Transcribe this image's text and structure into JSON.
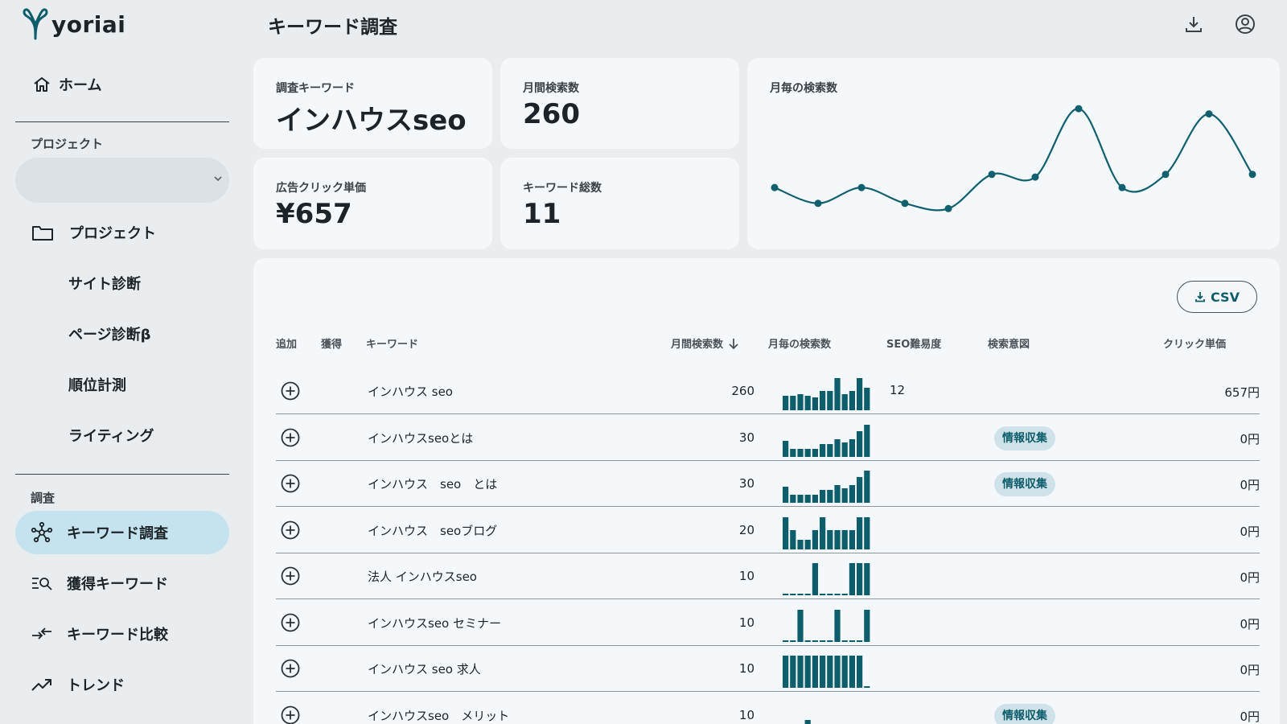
{
  "brand": {
    "name": "yoriai",
    "accent": "#0e5d6b",
    "highlight": "#c5e3ee"
  },
  "nav": {
    "home": "ホーム",
    "project_section": "プロジェクト",
    "project_select_value": "",
    "project": "プロジェクト",
    "site_diagnosis": "サイト診断",
    "page_diagnosis": "ページ診断β",
    "rank_tracking": "順位計測",
    "writing": "ライティング",
    "research_section": "調査",
    "keyword_research": "キーワード調査",
    "acquired_keywords": "獲得キーワード",
    "keyword_compare": "キーワード比較",
    "trend": "トレンド"
  },
  "header": {
    "title": "キーワード調査"
  },
  "metrics": {
    "keyword": {
      "label": "調査キーワード",
      "value": "インハウスseo"
    },
    "monthly_volume": {
      "label": "月間検索数",
      "value": "260"
    },
    "cpc": {
      "label": "広告クリック単価",
      "value": "¥657"
    },
    "total_keywords": {
      "label": "キーワード総数",
      "value": "11"
    }
  },
  "chart_data": {
    "type": "line",
    "title": "月毎の検索数",
    "series": [
      {
        "values": [
          190,
          160,
          190,
          160,
          150,
          215,
          210,
          340,
          190,
          215,
          330,
          215
        ]
      }
    ],
    "grid": false,
    "legend": "none"
  },
  "table": {
    "csv_label": "CSV",
    "headers": {
      "add": "追加",
      "acquired": "獲得",
      "keyword": "キーワード",
      "volume": "月間検索数",
      "monthly": "月毎の検索数",
      "difficulty": "SEO難易度",
      "intent": "検索意図",
      "cpc": "クリック単価"
    },
    "rows": [
      {
        "keyword": "インハウス seo",
        "volume": "260",
        "difficulty": "12",
        "intent": "",
        "cpc": "657円",
        "trend": [
          0.45,
          0.45,
          0.5,
          0.45,
          0.4,
          0.6,
          0.6,
          1.0,
          0.5,
          0.6,
          1.0,
          0.7
        ]
      },
      {
        "keyword": "インハウスseoとは",
        "volume": "30",
        "difficulty": "",
        "intent": "情報収集",
        "cpc": "0円",
        "trend": [
          0.5,
          0.25,
          0.25,
          0.25,
          0.25,
          0.4,
          0.4,
          0.55,
          0.45,
          0.55,
          0.8,
          1.0
        ]
      },
      {
        "keyword": "インハウス　seo　とは",
        "volume": "30",
        "difficulty": "",
        "intent": "情報収集",
        "cpc": "0円",
        "trend": [
          0.5,
          0.25,
          0.25,
          0.25,
          0.25,
          0.4,
          0.4,
          0.55,
          0.45,
          0.55,
          0.8,
          1.0
        ]
      },
      {
        "keyword": "インハウス　seoブログ",
        "volume": "20",
        "difficulty": "",
        "intent": "",
        "cpc": "0円",
        "trend": [
          1.0,
          0.6,
          0.3,
          0.3,
          0.6,
          1.0,
          0.6,
          0.6,
          0.6,
          0.6,
          1.0,
          1.0
        ]
      },
      {
        "keyword": "法人 インハウスseo",
        "volume": "10",
        "difficulty": "",
        "intent": "",
        "cpc": "0円",
        "trend": [
          0,
          0,
          0,
          0,
          1.0,
          0,
          0,
          0,
          0,
          1.0,
          1.0,
          1.0
        ]
      },
      {
        "keyword": "インハウスseo セミナー",
        "volume": "10",
        "difficulty": "",
        "intent": "",
        "cpc": "0円",
        "trend": [
          0,
          0,
          1.0,
          0,
          0,
          0,
          0,
          1.0,
          0,
          0,
          0,
          1.0
        ]
      },
      {
        "keyword": "インハウス seo 求人",
        "volume": "10",
        "difficulty": "",
        "intent": "",
        "cpc": "0円",
        "trend": [
          1.0,
          1.0,
          1.0,
          1.0,
          1.0,
          1.0,
          1.0,
          1.0,
          1.0,
          1.0,
          1.0,
          0
        ]
      },
      {
        "keyword": "インハウスseo　メリット",
        "volume": "10",
        "difficulty": "",
        "intent": "情報収集",
        "cpc": "0円",
        "trend": [
          0,
          0,
          0,
          0.45,
          0,
          0,
          0,
          0,
          0,
          0,
          0,
          0
        ]
      }
    ]
  }
}
